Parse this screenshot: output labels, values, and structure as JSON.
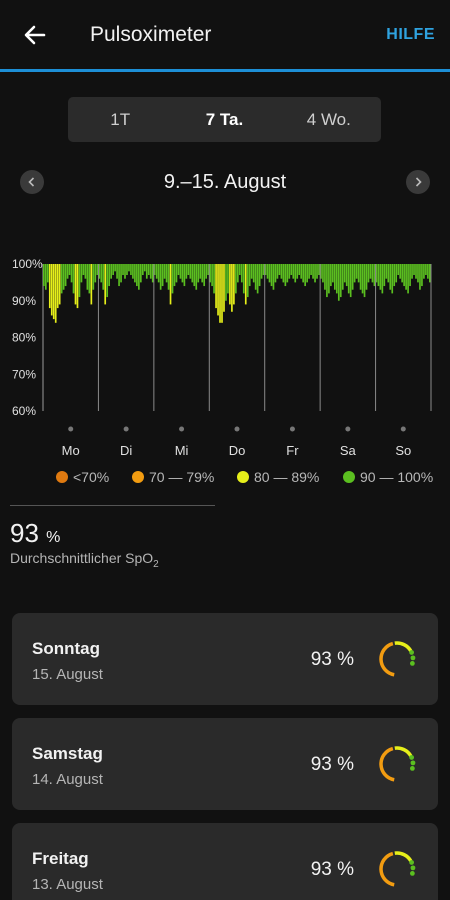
{
  "header": {
    "title": "Pulsoximeter",
    "help_label": "HILFE",
    "back_icon": "arrow-left-icon"
  },
  "tabs": [
    {
      "label": "1T",
      "active": false
    },
    {
      "label": "7 Ta.",
      "active": true
    },
    {
      "label": "4 Wo.",
      "active": false
    }
  ],
  "date_nav": {
    "range": "9.–15. August",
    "prev_icon": "chevron-left-icon",
    "next_icon": "chevron-right-icon"
  },
  "chart_data": {
    "type": "bar",
    "y_ticks": [
      "100%",
      "90%",
      "80%",
      "70%",
      "60%"
    ],
    "ylim": [
      60,
      100
    ],
    "days": [
      "Mo",
      "Di",
      "Mi",
      "Do",
      "Fr",
      "Sa",
      "So"
    ],
    "legend": [
      {
        "label": "<70%",
        "color": "#e07a10"
      },
      {
        "label": "70 — 79%",
        "color": "#f29c11"
      },
      {
        "label": "80 — 89%",
        "color": "#e6ef1a"
      },
      {
        "label": "90 — 100%",
        "color": "#5bbf20"
      }
    ],
    "series": [
      {
        "values": [
          94,
          93,
          95,
          88,
          86,
          85,
          84,
          88,
          89,
          92,
          93,
          94,
          96,
          97,
          95,
          92,
          89,
          88,
          91,
          95,
          97,
          96,
          93,
          92,
          89,
          93,
          95,
          97
        ]
      },
      {
        "values": [
          96,
          95,
          93,
          89,
          91,
          94,
          96,
          97,
          98,
          96,
          94,
          95,
          97,
          96,
          97,
          98,
          97,
          96,
          95,
          94,
          93,
          95,
          97,
          98,
          96,
          97,
          96,
          95
        ]
      },
      {
        "values": [
          97,
          96,
          95,
          93,
          94,
          96,
          95,
          93,
          89,
          92,
          94,
          95,
          97,
          96,
          95,
          94,
          96,
          97,
          96,
          95,
          94,
          93,
          95,
          96,
          95,
          94,
          96,
          97
        ]
      },
      {
        "values": [
          95,
          94,
          92,
          88,
          86,
          84,
          84,
          87,
          90,
          92,
          89,
          87,
          89,
          92,
          95,
          97,
          95,
          92,
          89,
          91,
          94,
          96,
          95,
          93,
          92,
          94,
          96,
          97
        ]
      },
      {
        "values": [
          97,
          96,
          95,
          94,
          93,
          95,
          96,
          97,
          96,
          95,
          94,
          95,
          96,
          97,
          96,
          95,
          96,
          97,
          96,
          95,
          94,
          95,
          96,
          97,
          96,
          95,
          96,
          97
        ]
      },
      {
        "values": [
          96,
          95,
          93,
          91,
          92,
          94,
          95,
          93,
          92,
          90,
          91,
          93,
          95,
          94,
          92,
          91,
          93,
          95,
          96,
          95,
          93,
          92,
          91,
          93,
          95,
          96,
          95,
          94
        ]
      },
      {
        "values": [
          95,
          94,
          93,
          92,
          94,
          96,
          95,
          93,
          92,
          94,
          95,
          97,
          96,
          95,
          94,
          93,
          92,
          94,
          96,
          97,
          96,
          95,
          93,
          94,
          96,
          97,
          96,
          95
        ]
      }
    ]
  },
  "summary": {
    "value": "93",
    "unit": "%",
    "label": "Durchschnittlicher SpO",
    "label_sub": "2"
  },
  "days": [
    {
      "day": "Sonntag",
      "date": "15. August",
      "value": "93 %"
    },
    {
      "day": "Samstag",
      "date": "14. August",
      "value": "93 %"
    },
    {
      "day": "Freitag",
      "date": "13. August",
      "value": "93 %"
    }
  ]
}
